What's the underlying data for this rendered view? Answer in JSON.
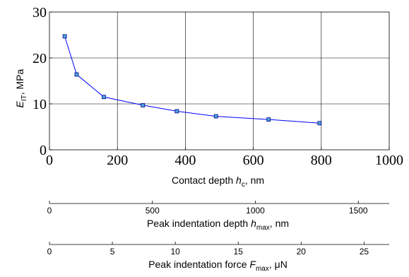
{
  "chart_data": {
    "type": "line",
    "grid": true,
    "colors": {
      "line": "#0000ff",
      "marker_fill": "#4fa3d9",
      "marker_edge": "#00008b",
      "axis": "#000000",
      "grid": "#000000"
    },
    "x": [
      45,
      80,
      160,
      275,
      375,
      490,
      645,
      795
    ],
    "series": [
      {
        "values": [
          24.7,
          16.4,
          11.5,
          9.7,
          8.4,
          7.3,
          6.6,
          5.8
        ]
      }
    ],
    "xlim": [
      0,
      1000
    ],
    "ylim": [
      0,
      30
    ],
    "x_ticks": [
      "0",
      "200",
      "400",
      "600",
      "800",
      "1000"
    ],
    "y_ticks": [
      "0",
      "10",
      "20",
      "30"
    ],
    "ylabel": {
      "main": "E",
      "sub": "IT",
      "rest": ", MPa"
    },
    "xlabel": {
      "main": "Contact depth ",
      "italic": "h",
      "sub": "c",
      "rest": ", nm"
    },
    "secondary_axes": [
      {
        "ticks": [
          "0",
          "500",
          "1000",
          "1500"
        ],
        "tick_values": [
          0,
          500,
          1000,
          1500
        ],
        "range": [
          0,
          1650
        ],
        "label": {
          "main": "Peak indentation depth ",
          "italic": "h",
          "sub": "max",
          "rest": ", nm"
        }
      },
      {
        "ticks": [
          "0",
          "5",
          "10",
          "15",
          "20",
          "25"
        ],
        "tick_values": [
          0,
          5,
          10,
          15,
          20,
          25
        ],
        "range": [
          0,
          27
        ],
        "label": {
          "main": "Peak indentation force ",
          "italic": "F",
          "sub": "max",
          "rest": ", μN"
        }
      }
    ]
  }
}
